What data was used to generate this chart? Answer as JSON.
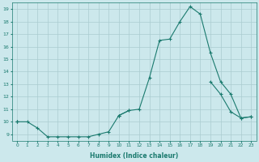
{
  "xlabel": "Humidex (Indice chaleur)",
  "bg_color": "#cce8ec",
  "grid_color": "#aaccd0",
  "line_color": "#1a7a6e",
  "x_values": [
    0,
    1,
    2,
    3,
    4,
    5,
    6,
    7,
    8,
    9,
    10,
    11,
    12,
    13,
    14,
    15,
    16,
    17,
    18,
    19,
    20,
    21,
    22,
    23
  ],
  "line1": [
    10.0,
    10.0,
    9.5,
    8.8,
    8.8,
    8.8,
    8.8,
    8.8,
    9.0,
    9.2,
    10.5,
    10.9,
    null,
    null,
    null,
    null,
    null,
    null,
    null,
    null,
    null,
    null,
    null,
    null
  ],
  "line2": [
    10.0,
    null,
    null,
    null,
    null,
    null,
    null,
    null,
    null,
    null,
    10.5,
    10.9,
    11.0,
    13.5,
    16.5,
    16.6,
    18.0,
    19.2,
    18.6,
    15.5,
    13.2,
    12.2,
    10.3,
    10.4
  ],
  "line3": [
    10.0,
    null,
    null,
    null,
    null,
    null,
    null,
    null,
    null,
    null,
    10.5,
    null,
    null,
    null,
    null,
    null,
    null,
    null,
    null,
    13.2,
    12.2,
    10.8,
    10.3,
    10.4
  ],
  "ylim": [
    8.5,
    19.5
  ],
  "yticks": [
    9,
    10,
    11,
    12,
    13,
    14,
    15,
    16,
    17,
    18,
    19
  ],
  "xlim": [
    -0.5,
    23.5
  ],
  "xticks": [
    0,
    1,
    2,
    3,
    4,
    5,
    6,
    7,
    8,
    9,
    10,
    11,
    12,
    13,
    14,
    15,
    16,
    17,
    18,
    19,
    20,
    21,
    22,
    23
  ]
}
